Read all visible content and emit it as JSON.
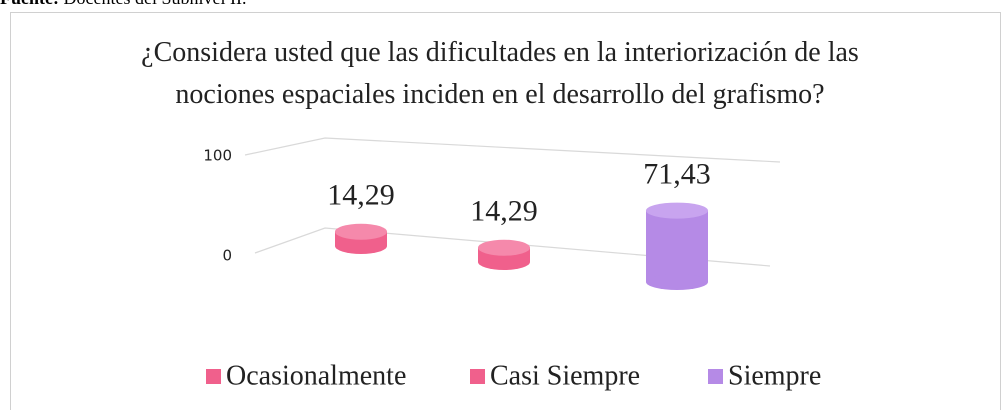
{
  "source": {
    "label": "Fuente:",
    "text": "Docentes del Subnivel II."
  },
  "chart_data": {
    "type": "bar3d",
    "title": "¿Considera usted que las dificultades en la interiorización de las nociones espaciales inciden en el desarrollo del grafismo?",
    "ylim": [
      0,
      100
    ],
    "yticks": [
      0,
      100
    ],
    "grid": true,
    "legend": "bottom",
    "series": [
      {
        "name": "Ocasionalmente",
        "color": "#f0608c",
        "values": [
          14.29
        ],
        "value_labels": [
          "14,29"
        ]
      },
      {
        "name": "Casi Siempre",
        "color": "#f0608c",
        "values": [
          14.29
        ],
        "value_labels": [
          "14,29"
        ]
      },
      {
        "name": "Siempre",
        "color": "#b58ae6",
        "values": [
          71.43
        ],
        "value_labels": [
          "71,43"
        ]
      }
    ]
  }
}
